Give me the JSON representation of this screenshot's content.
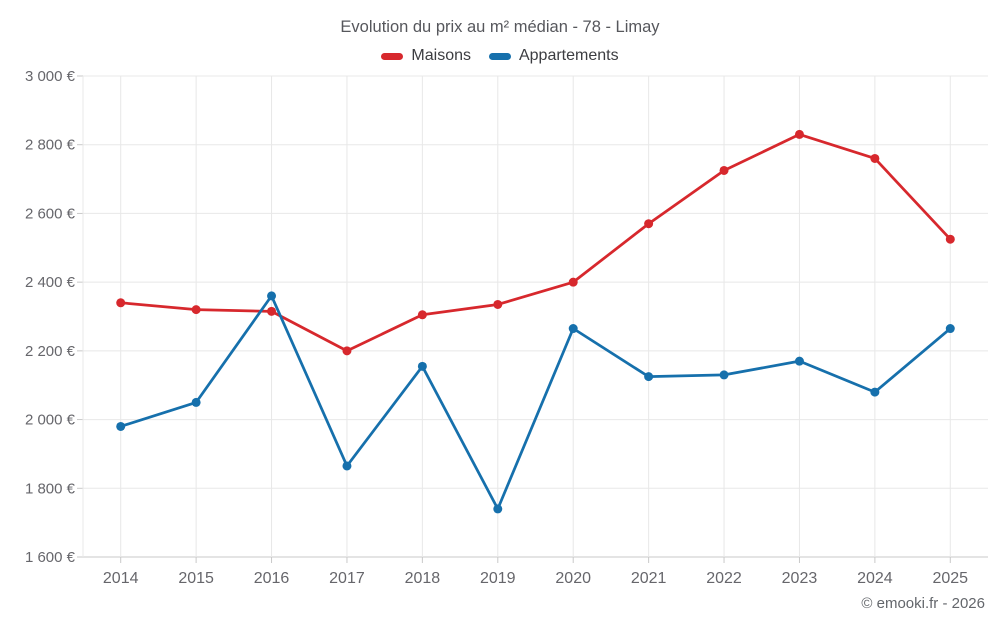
{
  "footer": {
    "copyright": "© emooki.fr - 2026"
  },
  "colors": {
    "maisons": "#d7282d",
    "appartements": "#1670ac",
    "gridline": "#e8e8e8",
    "axis": "#c9c9c9",
    "title_text": "#56575c",
    "tick_text": "#66666b",
    "legend_text": "#3c3d41",
    "background": "#ffffff"
  },
  "chart_data": {
    "type": "line",
    "title": "Evolution du prix au m² médian - 78 - Limay",
    "categories": [
      "2014",
      "2015",
      "2016",
      "2017",
      "2018",
      "2019",
      "2020",
      "2021",
      "2022",
      "2023",
      "2024",
      "2025"
    ],
    "series": [
      {
        "name": "Maisons",
        "color": "#d7282d",
        "values": [
          2340,
          2320,
          2315,
          2200,
          2305,
          2335,
          2400,
          2570,
          2725,
          2830,
          2760,
          2525
        ]
      },
      {
        "name": "Appartements",
        "color": "#1670ac",
        "values": [
          1980,
          2050,
          2360,
          1865,
          2155,
          1740,
          2265,
          2125,
          2130,
          2170,
          2080,
          2265
        ]
      }
    ],
    "xlabel": "",
    "ylabel": "",
    "ylim": [
      1600,
      3000
    ],
    "y_ticks": [
      1600,
      1800,
      2000,
      2200,
      2400,
      2600,
      2800,
      3000
    ],
    "y_tick_labels": [
      "1 600 €",
      "1 800 €",
      "2 000 €",
      "2 200 €",
      "2 400 €",
      "2 600 €",
      "2 800 €",
      "3 000 €"
    ],
    "grid": true,
    "legend_position": "top",
    "marker": "circle"
  }
}
